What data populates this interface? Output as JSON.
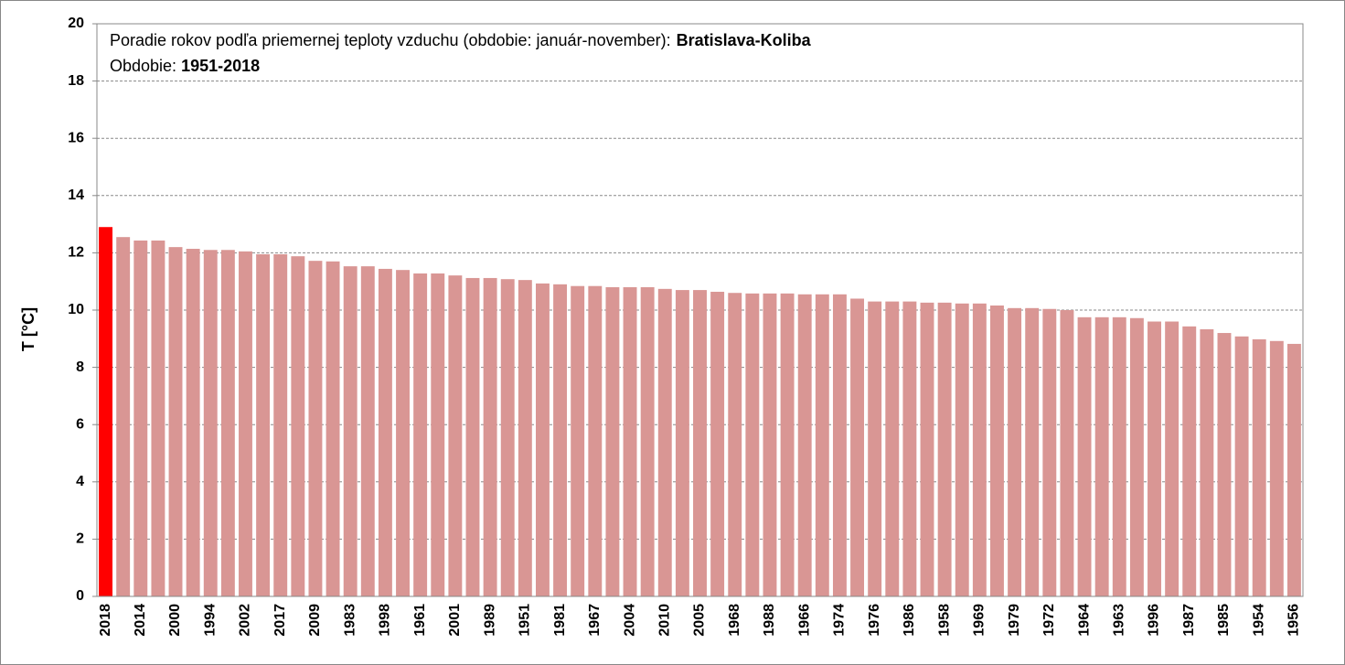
{
  "chart_data": {
    "type": "bar",
    "title": [
      "Poradie rokov podľa priemernej teploty vzduchu (obdobie: január-november):",
      "Bratislava-Koliba"
    ],
    "subtitle": [
      "Obdobie:",
      "1951-2018"
    ],
    "y_label": "T [°C]",
    "categories": [
      "2018",
      null,
      "2014",
      null,
      "2000",
      null,
      "1994",
      null,
      "2002",
      null,
      "2017",
      null,
      "2009",
      null,
      "1983",
      null,
      "1998",
      null,
      "1961",
      null,
      "2001",
      null,
      "1989",
      null,
      "1951",
      null,
      "1981",
      null,
      "1967",
      null,
      "2004",
      null,
      "2010",
      null,
      "2005",
      null,
      "1968",
      null,
      "1988",
      null,
      "1966",
      null,
      "1974",
      null,
      "1976",
      null,
      "1986",
      null,
      "1958",
      null,
      "1969",
      null,
      "1979",
      null,
      "1972",
      null,
      "1964",
      null,
      "1963",
      null,
      "1996",
      null,
      "1987",
      null,
      "1985",
      null,
      "1954",
      null,
      "1956"
    ],
    "values": [
      12.9,
      12.55,
      12.43,
      12.43,
      12.2,
      12.14,
      12.1,
      12.1,
      12.05,
      11.95,
      11.95,
      11.88,
      11.72,
      11.7,
      11.53,
      11.53,
      11.44,
      11.4,
      11.28,
      11.28,
      11.21,
      11.12,
      11.12,
      11.08,
      11.05,
      10.93,
      10.9,
      10.84,
      10.84,
      10.8,
      10.8,
      10.8,
      10.74,
      10.7,
      10.7,
      10.64,
      10.6,
      10.58,
      10.58,
      10.58,
      10.55,
      10.55,
      10.55,
      10.4,
      10.3,
      10.3,
      10.3,
      10.26,
      10.26,
      10.23,
      10.23,
      10.16,
      10.07,
      10.07,
      10.04,
      10.0,
      9.75,
      9.75,
      9.75,
      9.72,
      9.6,
      9.6,
      9.43,
      9.33,
      9.2,
      9.08,
      8.98,
      8.92,
      8.82
    ],
    "colors": [
      "#ff0000",
      "#d99694",
      "#d99694",
      "#d99694",
      "#d99694",
      "#d99694",
      "#d99694",
      "#d99694",
      "#d99694",
      "#d99694",
      "#d99694",
      "#d99694",
      "#d99694",
      "#d99694",
      "#d99694",
      "#d99694",
      "#d99694",
      "#d99694",
      "#d99694",
      "#d99694",
      "#d99694",
      "#d99694",
      "#d99694",
      "#d99694",
      "#d99694",
      "#d99694",
      "#d99694",
      "#d99694",
      "#d99694",
      "#d99694",
      "#d99694",
      "#d99694",
      "#d99694",
      "#d99694",
      "#d99694",
      "#d99694",
      "#d99694",
      "#d99694",
      "#d99694",
      "#d99694",
      "#d99694",
      "#d99694",
      "#d99694",
      "#d99694",
      "#d99694",
      "#d99694",
      "#d99694",
      "#d99694",
      "#d99694",
      "#d99694",
      "#d99694",
      "#d99694",
      "#d99694",
      "#d99694",
      "#d99694",
      "#d99694",
      "#d99694",
      "#d99694",
      "#d99694",
      "#d99694",
      "#d99694",
      "#d99694",
      "#d99694",
      "#d99694",
      "#d99694",
      "#d99694",
      "#d99694",
      "#d99694",
      "#d99694"
    ],
    "ylim": [
      0,
      20
    ],
    "yticks": [
      0,
      2,
      4,
      6,
      8,
      10,
      12,
      14,
      16,
      18,
      20
    ],
    "grid": true
  }
}
